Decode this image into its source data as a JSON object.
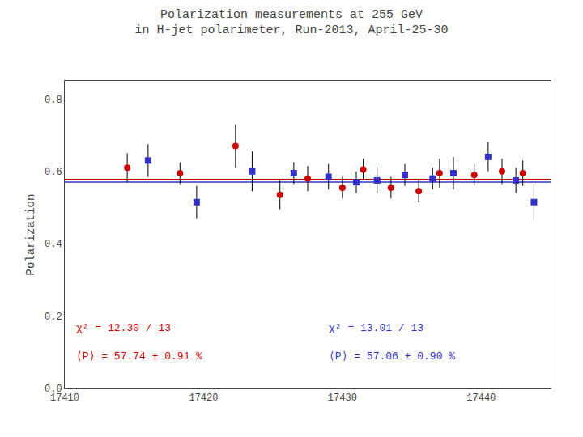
{
  "chart_data": {
    "type": "scatter",
    "title": "Polarization measurements at 255 GeV",
    "subtitle": "in H-jet polarimeter, Run-2013, April-25-30",
    "ylabel": "Polarization",
    "xlim": [
      17410,
      17445
    ],
    "xticks": [
      17410,
      17420,
      17430,
      17440
    ],
    "ylim": [
      0.0,
      0.85
    ],
    "yticks": [
      {
        "value": 0.0,
        "label": "0.0"
      },
      0.2,
      0.4,
      0.6,
      0.8
    ],
    "grid": false,
    "series": [
      {
        "color": "#cc0000",
        "marker": "circle",
        "x": [
          17414.5,
          17418.3,
          17422.3,
          17425.5,
          17427.5,
          17430.0,
          17431.5,
          17433.5,
          17435.5,
          17437.0,
          17439.5,
          17441.5,
          17443.0
        ],
        "values": [
          0.61,
          0.595,
          0.67,
          0.535,
          0.58,
          0.555,
          0.605,
          0.555,
          0.545,
          0.595,
          0.59,
          0.6,
          0.595
        ],
        "errors": [
          0.04,
          0.03,
          0.06,
          0.04,
          0.035,
          0.03,
          0.03,
          0.03,
          0.03,
          0.04,
          0.03,
          0.035,
          0.035
        ],
        "fit": 0.5774,
        "annotations": [
          "χ² = 12.30 / 13",
          "⟨P⟩ = 57.74 ± 0.91 %"
        ]
      },
      {
        "color": "#3333cc",
        "marker": "square",
        "x": [
          17416.0,
          17419.5,
          17423.5,
          17426.5,
          17429.0,
          17431.0,
          17432.5,
          17434.5,
          17436.5,
          17438.0,
          17440.5,
          17442.5,
          17443.8
        ],
        "values": [
          0.63,
          0.515,
          0.6,
          0.595,
          0.585,
          0.57,
          0.575,
          0.59,
          0.58,
          0.595,
          0.64,
          0.575,
          0.515
        ],
        "errors": [
          0.045,
          0.045,
          0.055,
          0.03,
          0.035,
          0.03,
          0.035,
          0.03,
          0.03,
          0.045,
          0.04,
          0.035,
          0.05
        ],
        "fit": 0.5706,
        "annotations": [
          "χ² = 13.01 / 13",
          "⟨P⟩ = 57.06 ± 0.90 %"
        ]
      }
    ]
  }
}
